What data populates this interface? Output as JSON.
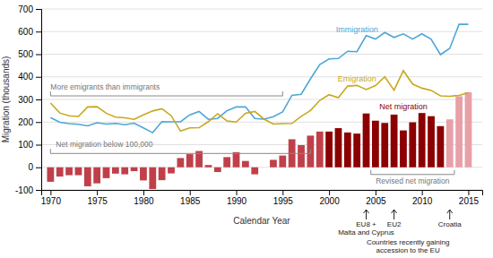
{
  "chart_data": {
    "type": "bar",
    "xlabel": "Calendar Year",
    "ylabel": "Migration (thousands)",
    "x": [
      1970,
      1971,
      1972,
      1973,
      1974,
      1975,
      1976,
      1977,
      1978,
      1979,
      1980,
      1981,
      1982,
      1983,
      1984,
      1985,
      1986,
      1987,
      1988,
      1989,
      1990,
      1991,
      1992,
      1993,
      1994,
      1995,
      1996,
      1997,
      1998,
      1999,
      2000,
      2001,
      2002,
      2003,
      2004,
      2005,
      2006,
      2007,
      2008,
      2009,
      2010,
      2011,
      2012,
      2013,
      2014,
      2015
    ],
    "xlim": [
      1969,
      2016.5
    ],
    "xticks": [
      1970,
      1975,
      1980,
      1985,
      1990,
      1995,
      2000,
      2005,
      2010,
      2015
    ],
    "ylim": [
      -100,
      700
    ],
    "yticks": [
      -100,
      0,
      100,
      200,
      300,
      400,
      500,
      600,
      700
    ],
    "grid": true,
    "series": [
      {
        "name": "Net migration",
        "type": "bar",
        "colors": [
          "#c0404a",
          "#c0404a",
          "#c0404a",
          "#c0404a",
          "#c0404a",
          "#c0404a",
          "#c0404a",
          "#c0404a",
          "#c0404a",
          "#c0404a",
          "#c0404a",
          "#c0404a",
          "#c0404a",
          "#c0404a",
          "#c0404a",
          "#c0404a",
          "#c0404a",
          "#c0404a",
          "#c0404a",
          "#c0404a",
          "#c0404a",
          "#c0404a",
          "#c0404a",
          "#c0404a",
          "#c0404a",
          "#c0404a",
          "#c0404a",
          "#c0404a",
          "#c0404a",
          "#c0404a",
          "#8b0000",
          "#8b0000",
          "#8b0000",
          "#8b0000",
          "#8b0000",
          "#8b0000",
          "#8b0000",
          "#8b0000",
          "#8b0000",
          "#8b0000",
          "#8b0000",
          "#8b0000",
          "#8b0000",
          "#e8a0a8",
          "#e8a0a8",
          "#e8a0a8"
        ],
        "values": [
          -64,
          -41,
          -35,
          -35,
          -84,
          -71,
          -48,
          -28,
          -31,
          -17,
          -58,
          -96,
          -57,
          -27,
          41,
          58,
          72,
          10,
          -21,
          45,
          67,
          28,
          -31,
          0,
          33,
          52,
          124,
          98,
          140,
          158,
          158,
          173,
          154,
          149,
          238,
          206,
          196,
          233,
          163,
          199,
          240,
          226,
          182,
          212,
          314,
          332
        ]
      },
      {
        "name": "Immigration",
        "type": "line",
        "color": "#4da6d9",
        "values": [
          220,
          199,
          193,
          190,
          183,
          197,
          191,
          194,
          188,
          195,
          174,
          153,
          202,
          201,
          201,
          232,
          247,
          212,
          216,
          250,
          267,
          267,
          216,
          213,
          224,
          245,
          318,
          323,
          391,
          454,
          479,
          481,
          513,
          511,
          582,
          567,
          596,
          574,
          590,
          567,
          590,
          566,
          498,
          526,
          632,
          632
        ]
      },
      {
        "name": "Emigration",
        "type": "line",
        "color": "#c8a820",
        "values": [
          284,
          240,
          228,
          225,
          267,
          268,
          239,
          222,
          219,
          212,
          232,
          249,
          259,
          228,
          160,
          174,
          175,
          202,
          237,
          205,
          200,
          239,
          247,
          213,
          191,
          193,
          194,
          225,
          251,
          296,
          321,
          308,
          359,
          362,
          344,
          361,
          400,
          341,
          427,
          368,
          350,
          340,
          316,
          314,
          318,
          330
        ]
      }
    ],
    "annotations": [
      {
        "text": "More emigrants than immigrants",
        "x": [
          1970,
          1995
        ]
      },
      {
        "text": "Net migration below 100,000",
        "x": [
          1970,
          1998
        ]
      },
      {
        "text": "Revised net migration",
        "x": [
          2004.5,
          2013.5
        ]
      },
      {
        "text": [
          "EU8 +",
          "Malta and Cyprus"
        ],
        "x": 2004
      },
      {
        "text": [
          "EU2"
        ],
        "x": 2007
      },
      {
        "text": [
          "Croatia"
        ],
        "x": 2013
      },
      {
        "text": [
          "Countries recently gaining",
          "accession to the EU"
        ]
      }
    ]
  }
}
